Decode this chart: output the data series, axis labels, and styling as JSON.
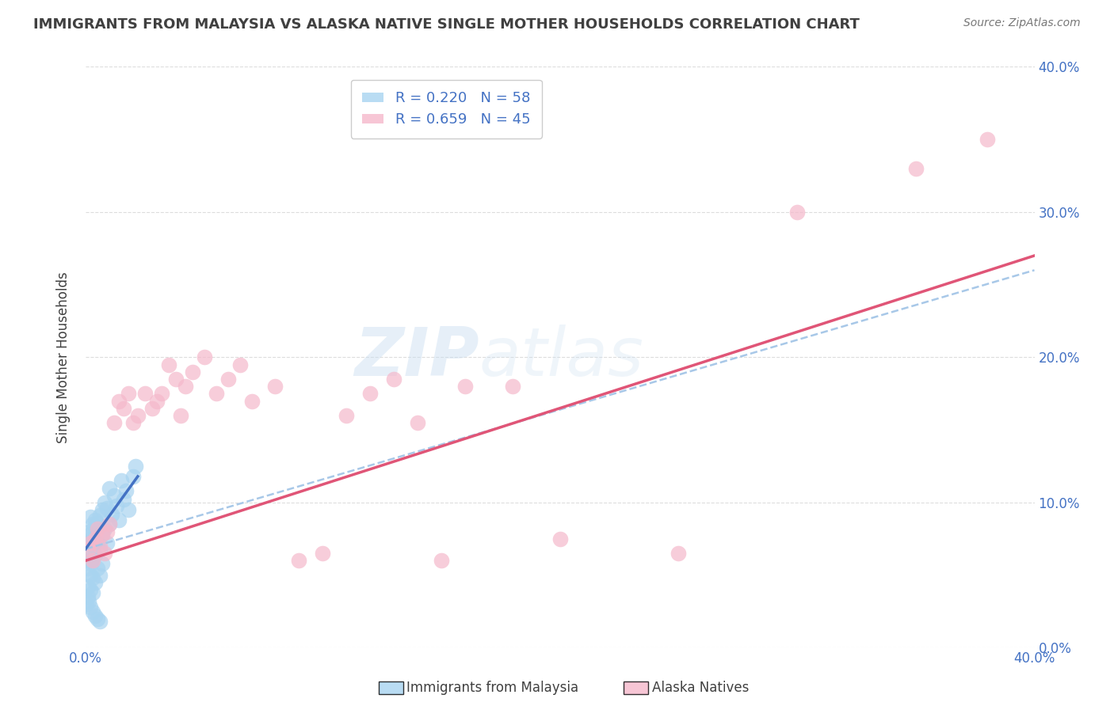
{
  "title": "IMMIGRANTS FROM MALAYSIA VS ALASKA NATIVE SINGLE MOTHER HOUSEHOLDS CORRELATION CHART",
  "source": "Source: ZipAtlas.com",
  "ylabel": "Single Mother Households",
  "xlim": [
    0.0,
    0.4
  ],
  "ylim": [
    0.0,
    0.4
  ],
  "x_ticks": [
    0.0,
    0.05,
    0.1,
    0.15,
    0.2,
    0.25,
    0.3,
    0.35,
    0.4
  ],
  "y_ticks": [
    0.0,
    0.1,
    0.2,
    0.3,
    0.4
  ],
  "y_tick_labels_right": [
    "0.0%",
    "10.0%",
    "20.0%",
    "30.0%",
    "40.0%"
  ],
  "legend_entries": [
    {
      "label": "R = 0.220   N = 58",
      "color": "#a8d4f0"
    },
    {
      "label": "R = 0.659   N = 45",
      "color": "#f0a8bc"
    }
  ],
  "blue_scatter_x": [
    0.0005,
    0.001,
    0.001,
    0.001,
    0.0015,
    0.0015,
    0.002,
    0.002,
    0.002,
    0.002,
    0.002,
    0.0025,
    0.0025,
    0.003,
    0.003,
    0.003,
    0.003,
    0.003,
    0.0035,
    0.0035,
    0.004,
    0.004,
    0.004,
    0.004,
    0.0045,
    0.005,
    0.005,
    0.005,
    0.006,
    0.006,
    0.006,
    0.007,
    0.007,
    0.007,
    0.008,
    0.008,
    0.009,
    0.009,
    0.01,
    0.01,
    0.011,
    0.012,
    0.013,
    0.014,
    0.015,
    0.016,
    0.017,
    0.018,
    0.02,
    0.021,
    0.0005,
    0.001,
    0.0015,
    0.002,
    0.003,
    0.004,
    0.005,
    0.006
  ],
  "blue_scatter_y": [
    0.072,
    0.065,
    0.055,
    0.042,
    0.08,
    0.06,
    0.078,
    0.068,
    0.05,
    0.04,
    0.09,
    0.075,
    0.058,
    0.085,
    0.072,
    0.062,
    0.048,
    0.038,
    0.082,
    0.07,
    0.088,
    0.076,
    0.064,
    0.045,
    0.079,
    0.086,
    0.073,
    0.055,
    0.091,
    0.068,
    0.05,
    0.095,
    0.078,
    0.058,
    0.1,
    0.082,
    0.096,
    0.072,
    0.11,
    0.085,
    0.092,
    0.105,
    0.098,
    0.088,
    0.115,
    0.102,
    0.108,
    0.095,
    0.118,
    0.125,
    0.03,
    0.035,
    0.032,
    0.028,
    0.025,
    0.022,
    0.02,
    0.018
  ],
  "pink_scatter_x": [
    0.001,
    0.002,
    0.003,
    0.004,
    0.005,
    0.006,
    0.007,
    0.008,
    0.009,
    0.01,
    0.012,
    0.014,
    0.016,
    0.018,
    0.02,
    0.022,
    0.025,
    0.028,
    0.03,
    0.032,
    0.035,
    0.038,
    0.04,
    0.042,
    0.045,
    0.05,
    0.055,
    0.06,
    0.065,
    0.07,
    0.08,
    0.09,
    0.1,
    0.11,
    0.12,
    0.13,
    0.14,
    0.15,
    0.16,
    0.18,
    0.2,
    0.25,
    0.3,
    0.35,
    0.38
  ],
  "pink_scatter_y": [
    0.068,
    0.072,
    0.06,
    0.075,
    0.082,
    0.07,
    0.078,
    0.065,
    0.08,
    0.085,
    0.155,
    0.17,
    0.165,
    0.175,
    0.155,
    0.16,
    0.175,
    0.165,
    0.17,
    0.175,
    0.195,
    0.185,
    0.16,
    0.18,
    0.19,
    0.2,
    0.175,
    0.185,
    0.195,
    0.17,
    0.18,
    0.06,
    0.065,
    0.16,
    0.175,
    0.185,
    0.155,
    0.06,
    0.18,
    0.18,
    0.075,
    0.065,
    0.3,
    0.33,
    0.35
  ],
  "blue_line_x": [
    0.0,
    0.022
  ],
  "blue_line_y": [
    0.068,
    0.118
  ],
  "pink_line_x": [
    0.0,
    0.4
  ],
  "pink_line_y": [
    0.06,
    0.27
  ],
  "dashed_line_x": [
    0.0,
    0.4
  ],
  "dashed_line_y": [
    0.068,
    0.26
  ],
  "watermark_zip": "ZIP",
  "watermark_atlas": "atlas",
  "background_color": "#ffffff",
  "grid_color": "#dddddd",
  "title_color": "#404040",
  "axis_label_color": "#4472c4",
  "blue_color": "#a8d4f0",
  "pink_color": "#f5b8cb",
  "blue_line_color": "#4472c4",
  "pink_line_color": "#e05577",
  "dashed_line_color": "#a8c8e8"
}
